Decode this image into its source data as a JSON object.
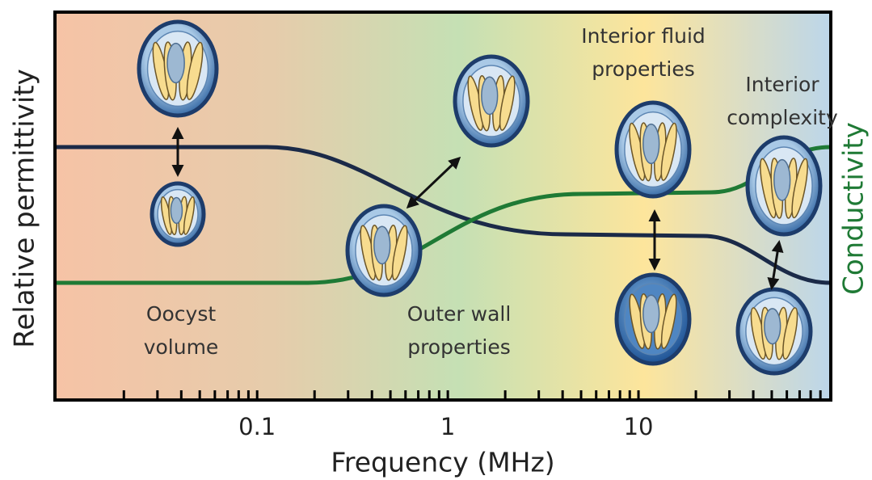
{
  "axis": {
    "label": "Frequency (MHz)",
    "scale": "log",
    "xlim": [
      0.0087,
      102
    ],
    "xticks": [
      0.1,
      1,
      10
    ]
  },
  "y_label_left": "Relative permittivity",
  "y_label_right": "Conductivity",
  "annotations": [
    {
      "lines": [
        "Oocyst",
        "volume"
      ]
    },
    {
      "lines": [
        "Outer wall",
        "properties"
      ]
    },
    {
      "lines": [
        "Interior fluid",
        "properties"
      ]
    },
    {
      "lines": [
        "Interior",
        "complexity"
      ]
    }
  ]
}
